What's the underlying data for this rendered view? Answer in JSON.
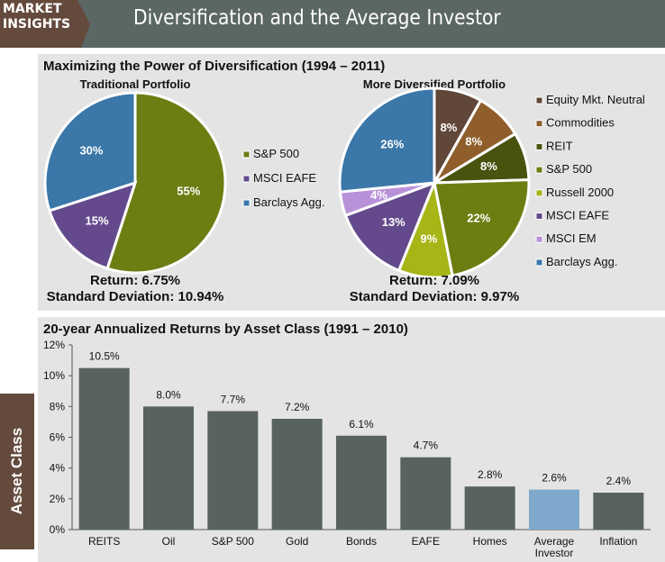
{
  "header": {
    "tag_line1": "MARKET",
    "tag_line2": "INSIGHTS",
    "title": "Diversification and the Average Investor"
  },
  "side_label": "Asset Class",
  "chart_data": [
    {
      "type": "pie",
      "panel_title": "Maximizing the Power of Diversification (1994 – 2011)",
      "title": "Traditional Portfolio",
      "slices": [
        {
          "label": "S&P 500",
          "value": 55,
          "display": "55%",
          "color": "#6e7d12"
        },
        {
          "label": "MSCI EAFE",
          "value": 15,
          "display": "15%",
          "color": "#644a8c"
        },
        {
          "label": "Barclays Agg.",
          "value": 30,
          "display": "30%",
          "color": "#3b77a8"
        }
      ],
      "footer": [
        "Return: 6.75%",
        "Standard Deviation: 10.94%"
      ],
      "legend": "right"
    },
    {
      "type": "pie",
      "title": "More Diversified Portfolio",
      "slices": [
        {
          "label": "Equity Mkt. Neutral",
          "value": 8,
          "display": "8%",
          "color": "#614739"
        },
        {
          "label": "Commodities",
          "value": 8,
          "display": "8%",
          "color": "#8f5e2b"
        },
        {
          "label": "REIT",
          "value": 8,
          "display": "8%",
          "color": "#4a5210"
        },
        {
          "label": "S&P 500",
          "value": 22,
          "display": "22%",
          "color": "#6e7d12"
        },
        {
          "label": "Russell 2000",
          "value": 9,
          "display": "9%",
          "color": "#a7b516"
        },
        {
          "label": "MSCI EAFE",
          "value": 13,
          "display": "13%",
          "color": "#644a8c"
        },
        {
          "label": "MSCI EM",
          "value": 4,
          "display": "4%",
          "color": "#b892d8"
        },
        {
          "label": "Barclays Agg.",
          "value": 26,
          "display": "26%",
          "color": "#3b77a8"
        }
      ],
      "footer": [
        "Return: 7.09%",
        "Standard Deviation: 9.97%"
      ],
      "legend": "right"
    },
    {
      "type": "bar",
      "title": "20-year Annualized Returns by Asset Class (1991 – 2010)",
      "categories": [
        "REITS",
        "Oil",
        "S&P 500",
        "Gold",
        "Bonds",
        "EAFE",
        "Homes",
        "Average Investor",
        "Inflation"
      ],
      "values": [
        10.5,
        8.0,
        7.7,
        7.2,
        6.1,
        4.7,
        2.8,
        2.6,
        2.4
      ],
      "labels": [
        "10.5%",
        "8.0%",
        "7.7%",
        "7.2%",
        "6.1%",
        "4.7%",
        "2.8%",
        "2.6%",
        "2.4%"
      ],
      "highlight": "Average Investor",
      "color": "#58635f",
      "highlight_color": "#7fa9cc",
      "yticks": [
        "0%",
        "2%",
        "4%",
        "6%",
        "8%",
        "10%",
        "12%"
      ],
      "ylim": [
        0,
        12
      ]
    }
  ]
}
